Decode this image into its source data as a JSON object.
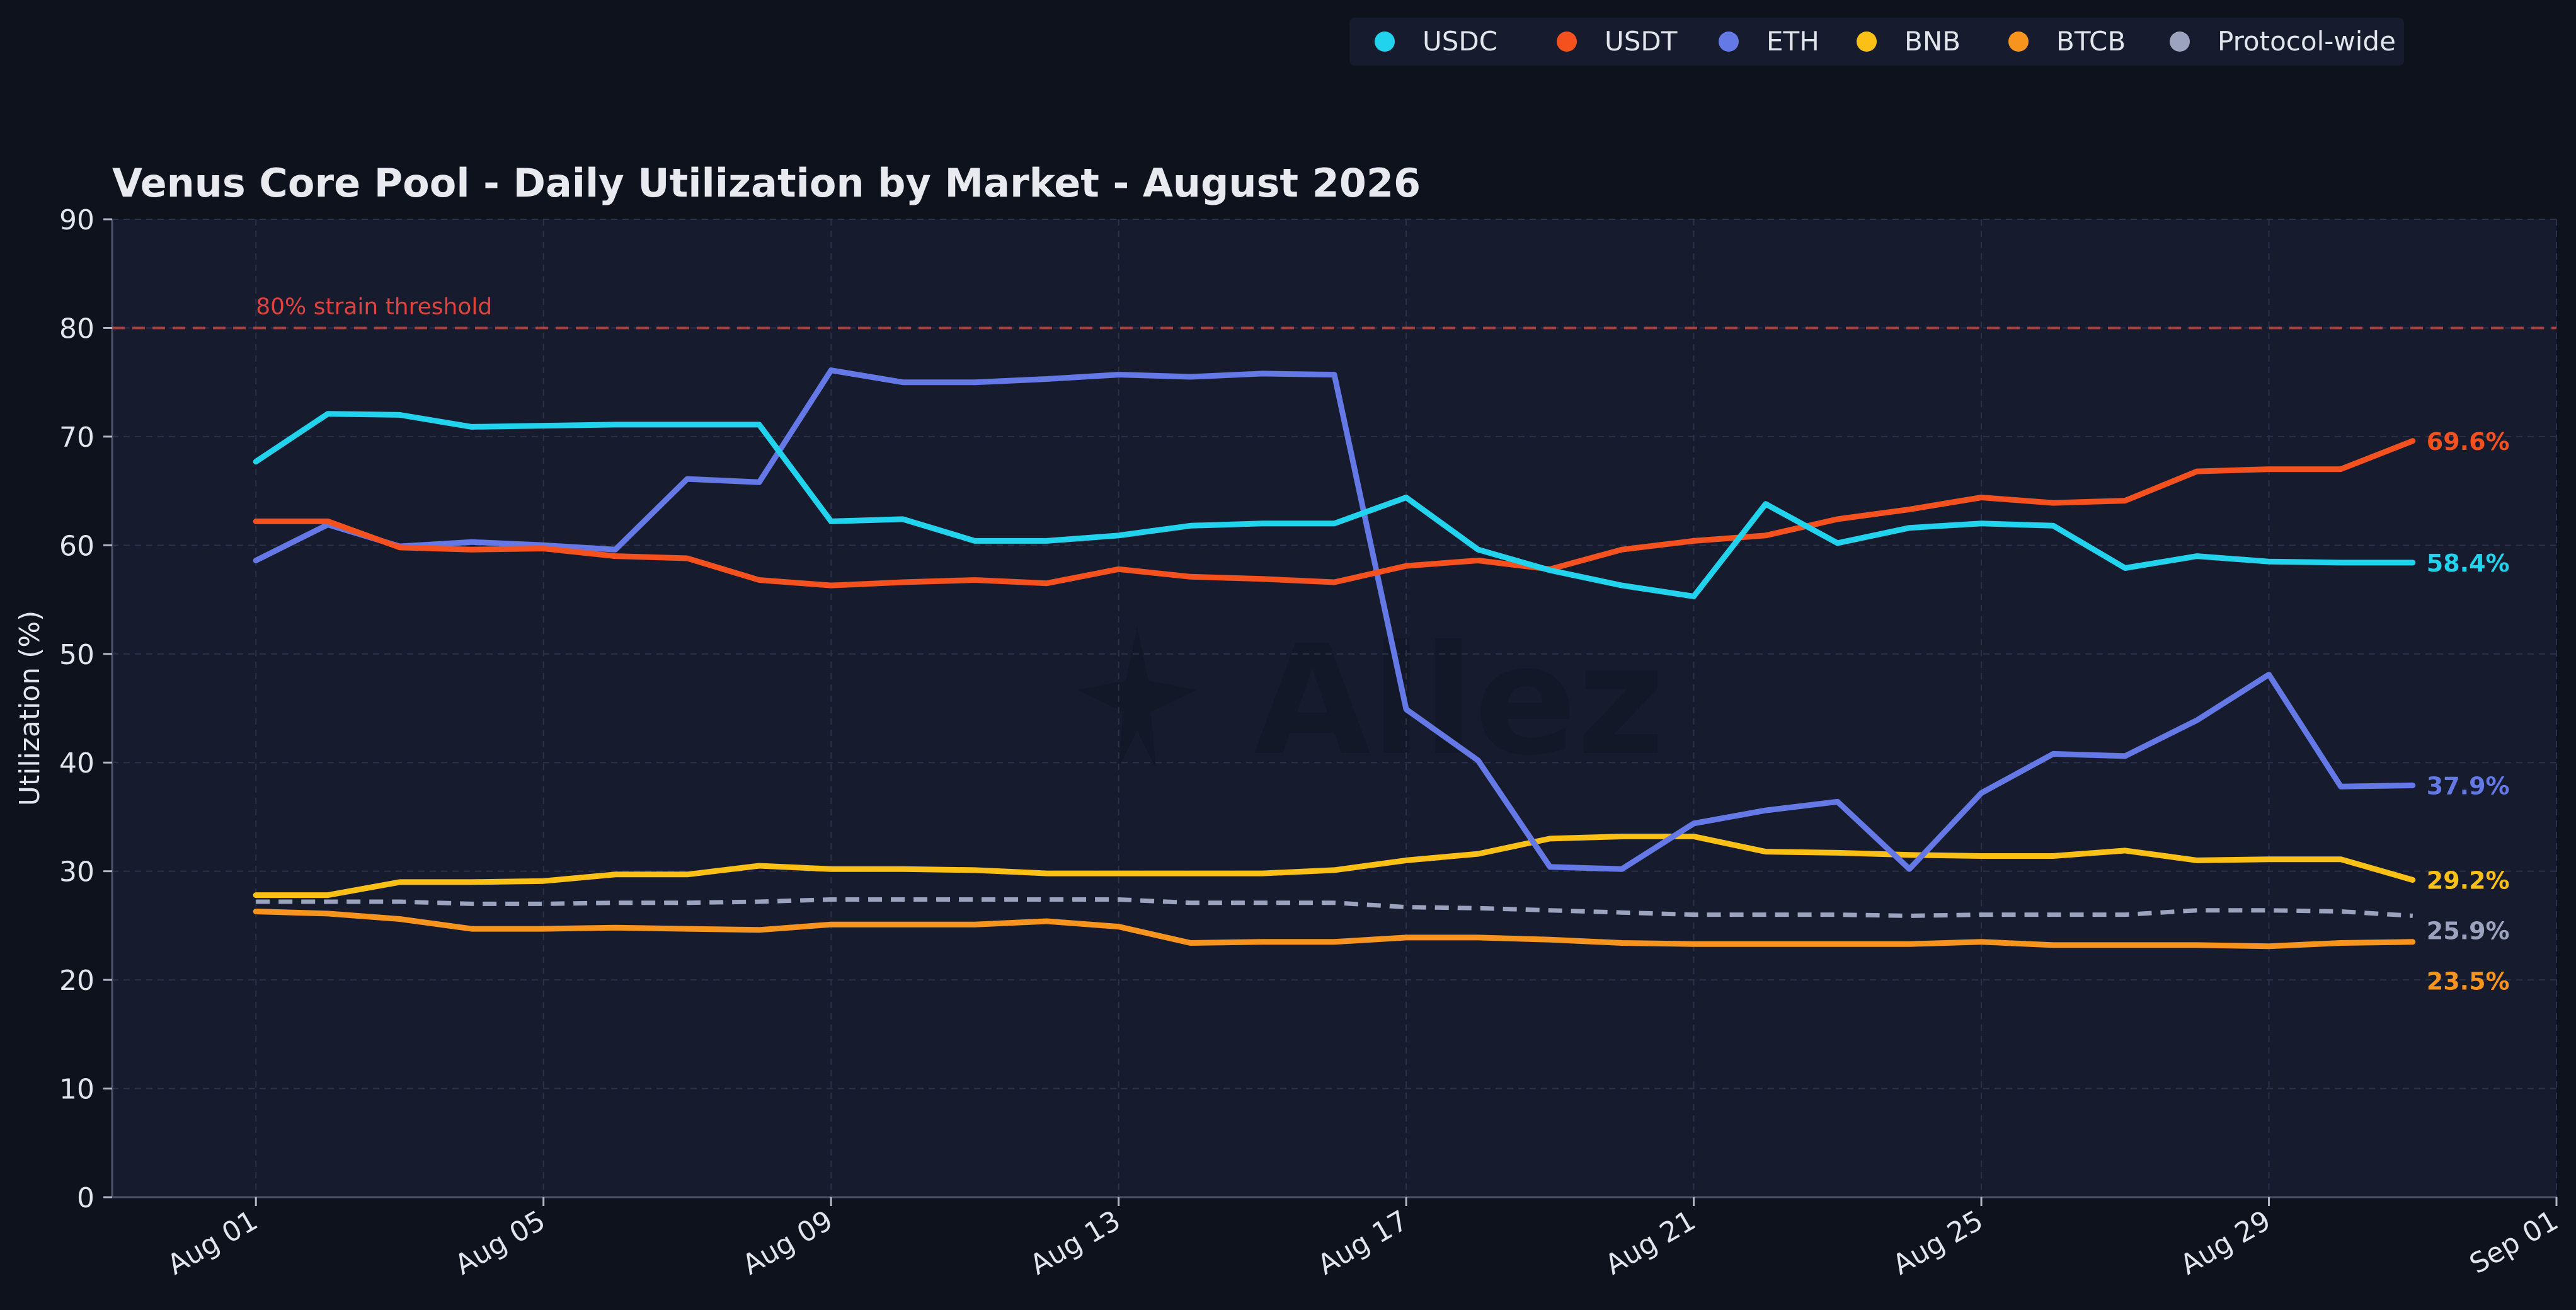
{
  "chart_data": {
    "type": "line",
    "title": "Venus Core Pool - Daily Utilization by Market - August 2026",
    "xlabel": "",
    "ylabel": "Utilization (%)",
    "ylim": [
      0,
      90
    ],
    "y_ticks": [
      0,
      10,
      20,
      30,
      40,
      50,
      60,
      70,
      80,
      90
    ],
    "x_ticks": [
      "Aug 01",
      "Aug 05",
      "Aug 09",
      "Aug 13",
      "Aug 17",
      "Aug 21",
      "Aug 25",
      "Aug 29",
      "Sep 01"
    ],
    "x": [
      "2026-08-01",
      "2026-08-02",
      "2026-08-03",
      "2026-08-04",
      "2026-08-05",
      "2026-08-06",
      "2026-08-07",
      "2026-08-08",
      "2026-08-09",
      "2026-08-10",
      "2026-08-11",
      "2026-08-12",
      "2026-08-13",
      "2026-08-14",
      "2026-08-15",
      "2026-08-16",
      "2026-08-17",
      "2026-08-18",
      "2026-08-19",
      "2026-08-20",
      "2026-08-21",
      "2026-08-22",
      "2026-08-23",
      "2026-08-24",
      "2026-08-25",
      "2026-08-26",
      "2026-08-27",
      "2026-08-28",
      "2026-08-29",
      "2026-08-30",
      "2026-08-31"
    ],
    "xlim": [
      "2026-07-30",
      "2026-09-02"
    ],
    "grid": true,
    "legend_position": "top-right",
    "background": "#0d121c",
    "plot_background": "#161b2e",
    "series": [
      {
        "name": "USDC",
        "color": "#22d3ee",
        "style": "solid",
        "end_label": "58.4%",
        "values": [
          67.7,
          72.1,
          72.0,
          70.9,
          71.0,
          71.1,
          71.1,
          71.1,
          62.2,
          62.4,
          60.4,
          60.4,
          60.9,
          61.8,
          62.0,
          62.0,
          64.4,
          59.6,
          57.7,
          56.3,
          55.3,
          63.8,
          60.2,
          61.6,
          62.0,
          61.8,
          57.9,
          59.0,
          58.5,
          58.4,
          58.4
        ]
      },
      {
        "name": "USDT",
        "color": "#f4511e",
        "style": "solid",
        "end_label": "69.6%",
        "values": [
          62.2,
          62.2,
          59.8,
          59.6,
          59.7,
          59.0,
          58.8,
          56.8,
          56.3,
          56.6,
          56.8,
          56.5,
          57.8,
          57.1,
          56.9,
          56.6,
          58.1,
          58.6,
          57.8,
          59.6,
          60.4,
          60.9,
          62.4,
          63.3,
          64.4,
          63.9,
          64.1,
          66.8,
          67.0,
          67.0,
          69.6
        ]
      },
      {
        "name": "ETH",
        "color": "#6478e6",
        "style": "solid",
        "end_label": "37.9%",
        "values": [
          58.6,
          61.9,
          59.9,
          60.3,
          60.0,
          59.6,
          66.1,
          65.8,
          76.1,
          75.0,
          75.0,
          75.3,
          75.7,
          75.5,
          75.8,
          75.7,
          44.9,
          40.2,
          30.4,
          30.2,
          34.4,
          35.6,
          36.4,
          30.2,
          37.2,
          40.8,
          40.6,
          43.9,
          48.1,
          37.8,
          37.9
        ]
      },
      {
        "name": "BNB",
        "color": "#fac015",
        "style": "solid",
        "end_label": "29.2%",
        "values": [
          27.8,
          27.8,
          29.0,
          29.0,
          29.1,
          29.7,
          29.7,
          30.5,
          30.2,
          30.2,
          30.1,
          29.8,
          29.8,
          29.8,
          29.8,
          30.1,
          31.0,
          31.6,
          33.0,
          33.2,
          33.2,
          31.8,
          31.7,
          31.5,
          31.4,
          31.4,
          31.9,
          31.0,
          31.1,
          31.1,
          29.2
        ]
      },
      {
        "name": "BTCB",
        "color": "#f7941d",
        "style": "solid",
        "end_label": "23.5%",
        "values": [
          26.3,
          26.1,
          25.6,
          24.7,
          24.7,
          24.8,
          24.7,
          24.6,
          25.1,
          25.1,
          25.1,
          25.4,
          24.9,
          23.4,
          23.5,
          23.5,
          23.9,
          23.9,
          23.7,
          23.4,
          23.3,
          23.3,
          23.3,
          23.3,
          23.5,
          23.2,
          23.2,
          23.2,
          23.1,
          23.4,
          23.5
        ]
      },
      {
        "name": "Protocol-wide",
        "color": "#9ba3bf",
        "style": "dashed",
        "end_label": "25.9%",
        "values": [
          27.2,
          27.2,
          27.2,
          27.0,
          27.0,
          27.1,
          27.1,
          27.2,
          27.4,
          27.4,
          27.4,
          27.4,
          27.4,
          27.1,
          27.1,
          27.1,
          26.7,
          26.6,
          26.4,
          26.2,
          26.0,
          26.0,
          26.0,
          25.9,
          26.0,
          26.0,
          26.0,
          26.4,
          26.4,
          26.3,
          25.9
        ]
      }
    ],
    "annotations": [
      {
        "type": "hline",
        "y": 80,
        "label": "80% strain threshold",
        "color": "#e0443e",
        "style": "dashed"
      }
    ]
  }
}
